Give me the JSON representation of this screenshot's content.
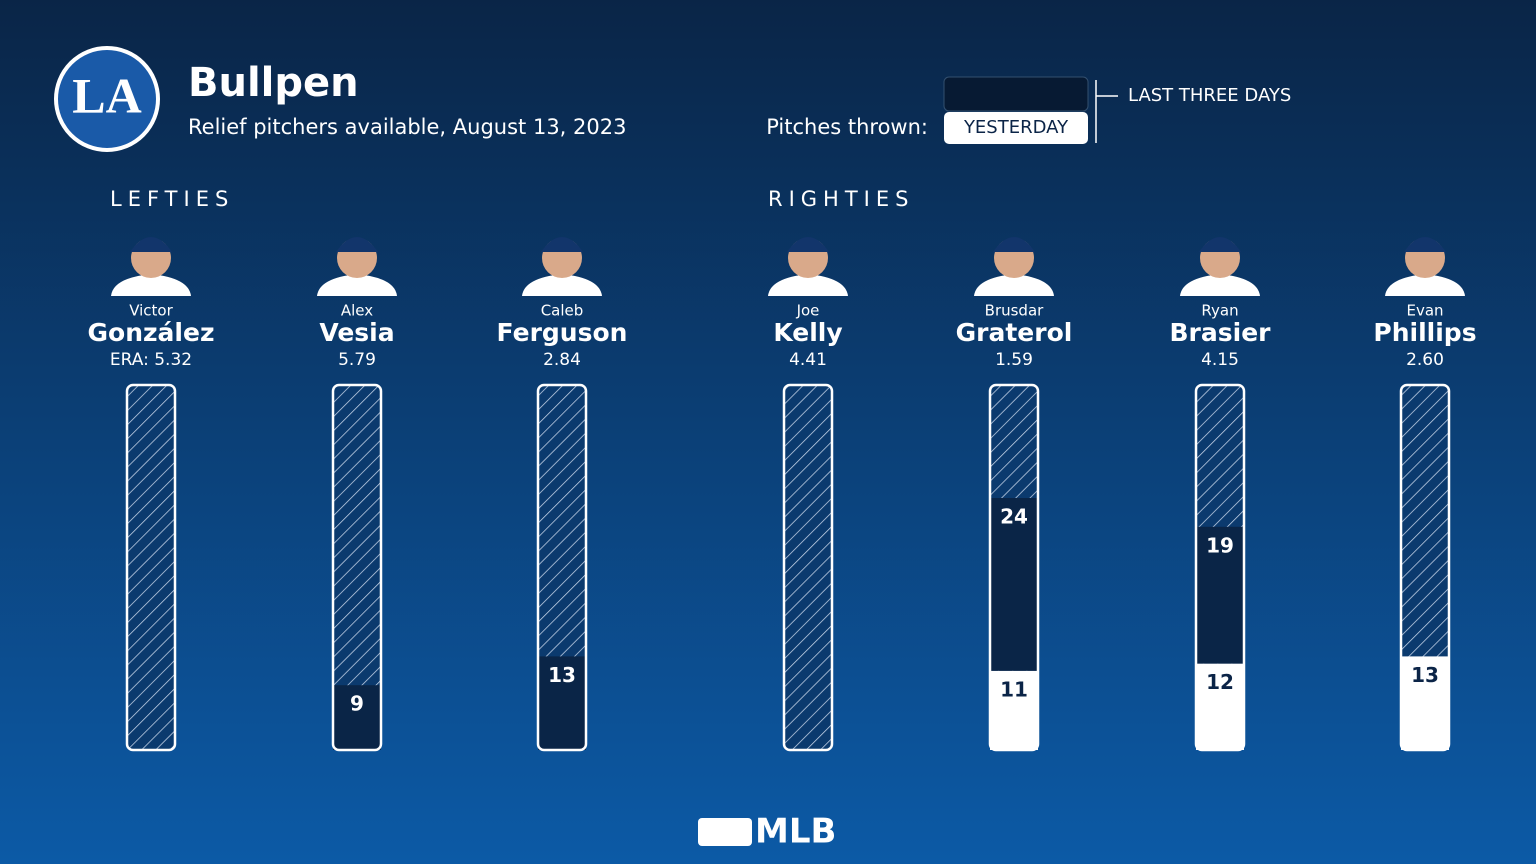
{
  "header": {
    "logo": "LA",
    "title": "Bullpen",
    "subtitle": "Relief pitchers available, August 13, 2023"
  },
  "legend": {
    "label": "Pitches thrown:",
    "yesterday": "YESTERDAY",
    "last_three_days": "LAST THREE DAYS"
  },
  "groups": [
    {
      "label": "LEFTIES",
      "pitchers": [
        {
          "first": "Victor",
          "last": "González",
          "era": "ERA: 5.32",
          "yesterday": null,
          "earlier": null
        },
        {
          "first": "Alex",
          "last": "Vesia",
          "era": "5.79",
          "yesterday": null,
          "earlier": 9
        },
        {
          "first": "Caleb",
          "last": "Ferguson",
          "era": "2.84",
          "yesterday": null,
          "earlier": 13
        }
      ]
    },
    {
      "label": "RIGHTIES",
      "pitchers": [
        {
          "first": "Joe",
          "last": "Kelly",
          "era": "4.41",
          "yesterday": null,
          "earlier": null
        },
        {
          "first": "Brusdar",
          "last": "Graterol",
          "era": "1.59",
          "yesterday": 11,
          "earlier": 24
        },
        {
          "first": "Ryan",
          "last": "Brasier",
          "era": "4.15",
          "yesterday": 12,
          "earlier": 19
        },
        {
          "first": "Evan",
          "last": "Phillips",
          "era": "2.60",
          "yesterday": 13,
          "earlier": null
        }
      ]
    }
  ],
  "footer": "MLB"
}
